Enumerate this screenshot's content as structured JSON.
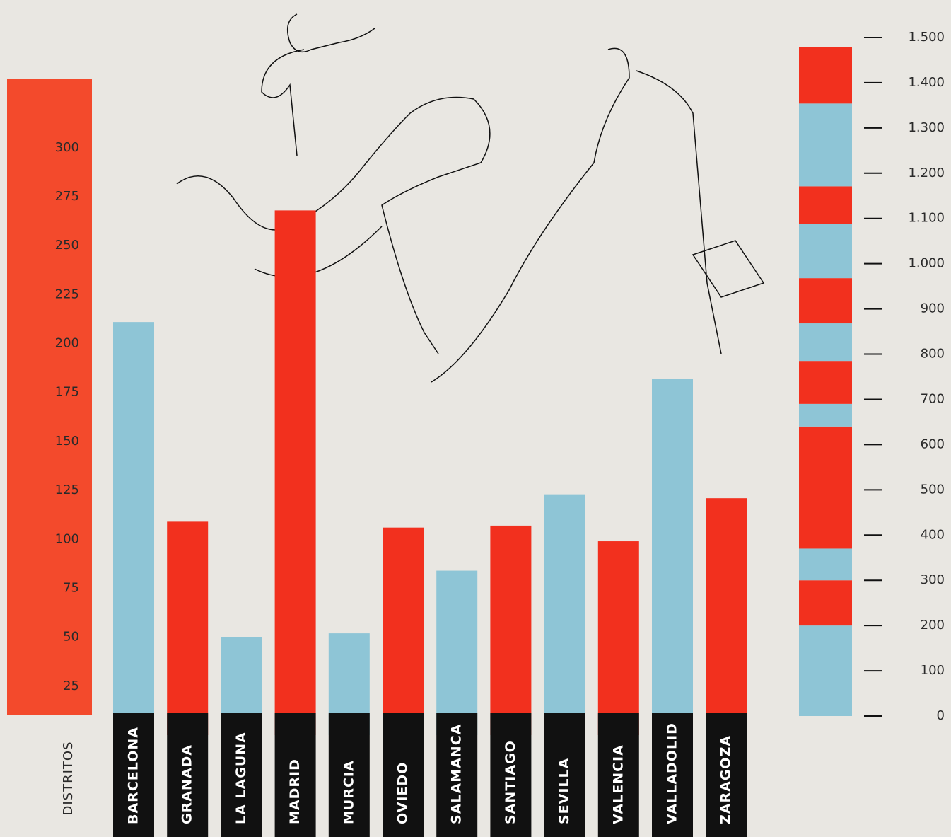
{
  "chart_data": [
    {
      "type": "bar",
      "axis_label": "DISTRITOS",
      "categories": [
        "BARCELONA",
        "GRANADA",
        "LA LAGUNA",
        "MADRID",
        "MURCIA",
        "OVIEDO",
        "SALAMANCA",
        "SANTIAGO",
        "SEVILLA",
        "VALENCIA",
        "VALLADOLID",
        "ZARAGOZA"
      ],
      "values": [
        211,
        109,
        50,
        268,
        52,
        106,
        84,
        107,
        123,
        99,
        182,
        121
      ],
      "colors": [
        "#8ec5d6",
        "#f2301e",
        "#8ec5d6",
        "#f2301e",
        "#8ec5d6",
        "#f2301e",
        "#8ec5d6",
        "#f2301e",
        "#8ec5d6",
        "#f2301e",
        "#8ec5d6",
        "#f2301e"
      ],
      "axis_color": "#f34a2c",
      "ylim": [
        0,
        335
      ],
      "yticks": [
        25,
        50,
        75,
        100,
        125,
        150,
        175,
        200,
        225,
        250,
        275,
        300
      ]
    },
    {
      "type": "stacked",
      "values": [
        200,
        100,
        70,
        270,
        50,
        95,
        83,
        100,
        120,
        83,
        183,
        125
      ],
      "colors": [
        "#8ec5d6",
        "#f2301e",
        "#8ec5d6",
        "#f2301e",
        "#8ec5d6",
        "#f2301e",
        "#8ec5d6",
        "#f2301e",
        "#8ec5d6",
        "#f2301e",
        "#8ec5d6",
        "#f2301e"
      ],
      "ylim": [
        0,
        1500
      ],
      "yticks": [
        0,
        100,
        200,
        300,
        400,
        500,
        600,
        700,
        800,
        900,
        {
          "value": 1000,
          "label": "1.000"
        },
        {
          "value": 1100,
          "label": "1.100"
        },
        {
          "value": 1200,
          "label": "1.200"
        },
        {
          "value": 1300,
          "label": "1.300"
        },
        {
          "value": 1400,
          "label": "1.400"
        },
        {
          "value": 1500,
          "label": "1.500"
        }
      ]
    }
  ]
}
